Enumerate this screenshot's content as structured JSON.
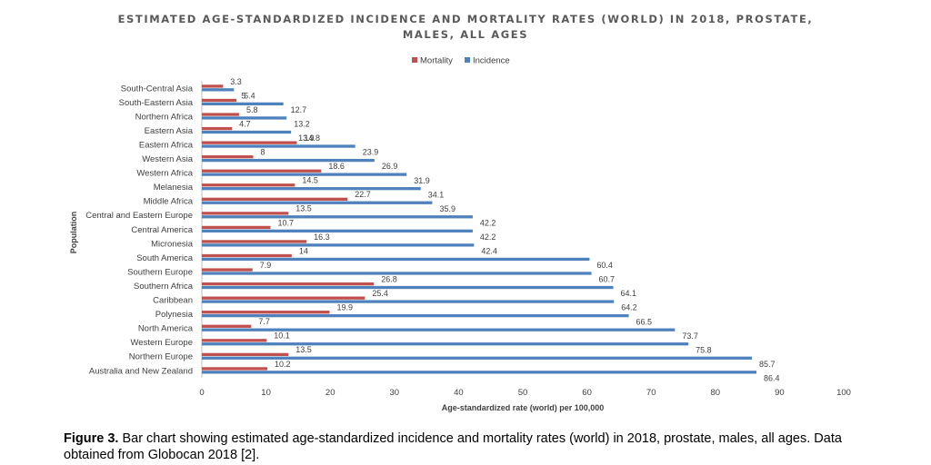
{
  "chart_data": {
    "type": "bar",
    "orientation": "horizontal",
    "title_line1": "ESTIMATED AGE-STANDARDIZED INCIDENCE AND MORTALITY RATES (WORLD) IN 2018, PROSTATE,",
    "title_line2": "MALES, ALL AGES",
    "xlabel": "Age-standardized rate (world) per 100,000",
    "ylabel": "Population",
    "xlim": [
      0,
      100
    ],
    "xticks": [
      0,
      10,
      20,
      30,
      40,
      50,
      60,
      70,
      80,
      90,
      100
    ],
    "legend_position": "top-center",
    "grid": false,
    "categories": [
      "South-Central Asia",
      "South-Eastern Asia",
      "Northern Africa",
      "Eastern Asia",
      "Eastern Africa",
      "Western Asia",
      "Western Africa",
      "Melanesia",
      "Middle Africa",
      "Central and Eastern Europe",
      "Central America",
      "Micronesia",
      "South America",
      "Southern Europe",
      "Southern Africa",
      "Caribbean",
      "Polynesia",
      "North America",
      "Western Europe",
      "Northern Europe",
      "Australia and New Zealand"
    ],
    "series": [
      {
        "name": "Mortality",
        "color": "#c0504d",
        "values": [
          3.3,
          5.4,
          5.8,
          4.7,
          14.8,
          8,
          18.6,
          14.5,
          22.7,
          13.5,
          10.7,
          16.3,
          14,
          7.9,
          26.8,
          25.4,
          19.9,
          7.7,
          10.1,
          13.5,
          10.2
        ]
      },
      {
        "name": "Incidence",
        "color": "#4f81bd",
        "values": [
          5,
          12.7,
          13.2,
          13.9,
          23.9,
          26.9,
          31.9,
          34.1,
          35.9,
          42.2,
          42.2,
          42.4,
          60.4,
          60.7,
          64.1,
          64.2,
          66.5,
          73.7,
          75.8,
          85.7,
          86.4
        ]
      }
    ]
  },
  "caption": {
    "label": "Figure 3.",
    "text": " Bar chart showing estimated age-standardized incidence and mortality rates (world) in 2018, prostate, males, all ages. Data obtained from Globocan 2018 [2]."
  }
}
